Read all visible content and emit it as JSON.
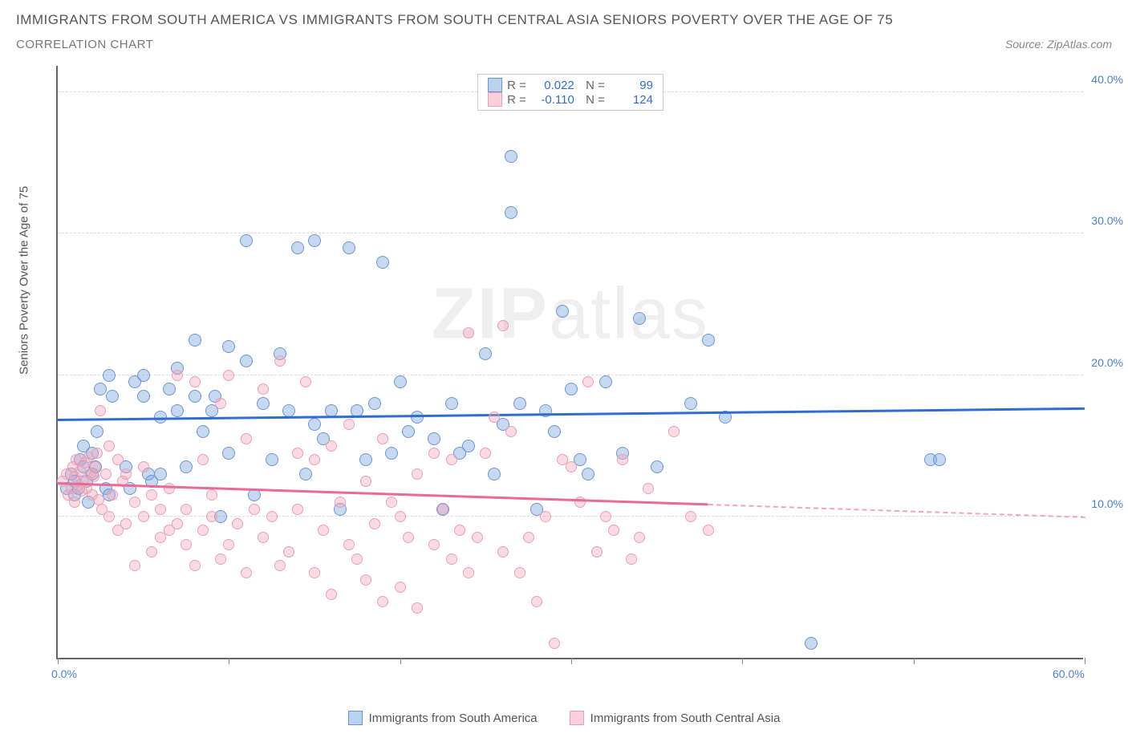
{
  "title": "IMMIGRANTS FROM SOUTH AMERICA VS IMMIGRANTS FROM SOUTH CENTRAL ASIA SENIORS POVERTY OVER THE AGE OF 75",
  "subtitle": "CORRELATION CHART",
  "source": "Source: ZipAtlas.com",
  "y_axis_label": "Seniors Poverty Over the Age of 75",
  "watermark_bold": "ZIP",
  "watermark_light": "atlas",
  "chart": {
    "type": "scatter",
    "xlim": [
      0,
      60
    ],
    "ylim": [
      0,
      42
    ],
    "x_ticks": [
      0,
      10,
      20,
      30,
      40,
      50,
      60
    ],
    "x_tick_labels": {
      "0": "0.0%",
      "60": "60.0%"
    },
    "y_ticks": [
      10,
      20,
      30,
      40
    ],
    "y_tick_labels": [
      "10.0%",
      "20.0%",
      "30.0%",
      "40.0%"
    ],
    "grid_y": [
      10,
      20,
      30,
      40
    ],
    "grid_color": "#dddddd",
    "background": "#ffffff",
    "series": [
      {
        "name": "Immigrants from South America",
        "color_fill": "rgba(130,170,225,0.45)",
        "color_stroke": "#6a95d5",
        "trend_color": "#2f6ed0",
        "R": "0.022",
        "N": "99",
        "trend": {
          "x1": 0,
          "y1": 16.8,
          "x2": 60,
          "y2": 17.6
        },
        "points": [
          [
            0.5,
            12
          ],
          [
            0.8,
            13
          ],
          [
            1,
            11.5
          ],
          [
            1,
            12.5
          ],
          [
            1.2,
            12
          ],
          [
            1.3,
            14
          ],
          [
            1.5,
            13.5
          ],
          [
            1.5,
            15
          ],
          [
            1.7,
            12.5
          ],
          [
            1.8,
            11
          ],
          [
            2,
            13
          ],
          [
            2,
            14.5
          ],
          [
            2.2,
            13.5
          ],
          [
            2.3,
            16
          ],
          [
            2.5,
            19
          ],
          [
            2.8,
            12
          ],
          [
            3,
            11.5
          ],
          [
            3,
            20
          ],
          [
            3.2,
            18.5
          ],
          [
            4,
            13.5
          ],
          [
            4.2,
            12
          ],
          [
            4.5,
            19.5
          ],
          [
            5,
            20
          ],
          [
            5,
            18.5
          ],
          [
            5.3,
            13
          ],
          [
            5.5,
            12.5
          ],
          [
            6,
            17
          ],
          [
            6,
            13
          ],
          [
            6.5,
            19
          ],
          [
            7,
            20.5
          ],
          [
            7,
            17.5
          ],
          [
            7.5,
            13.5
          ],
          [
            8,
            18.5
          ],
          [
            8,
            22.5
          ],
          [
            8.5,
            16
          ],
          [
            9,
            17.5
          ],
          [
            9.2,
            18.5
          ],
          [
            9.5,
            10
          ],
          [
            10,
            22
          ],
          [
            10,
            14.5
          ],
          [
            11,
            29.5
          ],
          [
            11,
            21
          ],
          [
            11.5,
            11.5
          ],
          [
            12,
            18
          ],
          [
            12.5,
            14
          ],
          [
            13,
            21.5
          ],
          [
            13.5,
            17.5
          ],
          [
            14,
            29
          ],
          [
            14.5,
            13
          ],
          [
            15,
            16.5
          ],
          [
            15,
            29.5
          ],
          [
            15.5,
            15.5
          ],
          [
            16,
            17.5
          ],
          [
            16.5,
            10.5
          ],
          [
            17,
            29
          ],
          [
            17.5,
            17.5
          ],
          [
            18,
            14
          ],
          [
            18.5,
            18
          ],
          [
            19,
            28
          ],
          [
            19.5,
            14.5
          ],
          [
            20,
            19.5
          ],
          [
            20.5,
            16
          ],
          [
            21,
            17
          ],
          [
            22,
            15.5
          ],
          [
            22.5,
            10.5
          ],
          [
            23,
            18
          ],
          [
            23.5,
            14.5
          ],
          [
            24,
            15
          ],
          [
            25,
            21.5
          ],
          [
            25.5,
            13
          ],
          [
            26,
            16.5
          ],
          [
            26.5,
            35.5
          ],
          [
            26.5,
            31.5
          ],
          [
            27,
            18
          ],
          [
            28,
            10.5
          ],
          [
            28.5,
            17.5
          ],
          [
            29,
            16
          ],
          [
            29.5,
            24.5
          ],
          [
            30,
            19
          ],
          [
            30.5,
            14
          ],
          [
            31,
            13
          ],
          [
            32,
            19.5
          ],
          [
            33,
            14.5
          ],
          [
            34,
            24
          ],
          [
            35,
            13.5
          ],
          [
            37,
            18
          ],
          [
            38,
            22.5
          ],
          [
            39,
            17
          ],
          [
            44,
            1
          ],
          [
            51,
            14
          ],
          [
            51.5,
            14
          ]
        ]
      },
      {
        "name": "Immigrants from South Central Asia",
        "color_fill": "rgba(245,165,185,0.4)",
        "color_stroke": "#e8a0b5",
        "trend_color": "#e86a95",
        "R": "-0.110",
        "N": "124",
        "trend": {
          "x1": 0,
          "y1": 12.3,
          "x2": 38,
          "y2": 10.8
        },
        "trend_dash": {
          "x1": 38,
          "y1": 10.8,
          "x2": 60,
          "y2": 9.9
        },
        "points": [
          [
            0.3,
            12.5
          ],
          [
            0.5,
            13
          ],
          [
            0.6,
            11.5
          ],
          [
            0.8,
            12
          ],
          [
            0.9,
            13.5
          ],
          [
            1,
            12.8
          ],
          [
            1,
            11
          ],
          [
            1.1,
            14
          ],
          [
            1.2,
            12.2
          ],
          [
            1.3,
            13.2
          ],
          [
            1.4,
            11.8
          ],
          [
            1.5,
            12.5
          ],
          [
            1.6,
            13.8
          ],
          [
            1.7,
            12
          ],
          [
            1.8,
            14.2
          ],
          [
            1.9,
            13
          ],
          [
            2,
            11.5
          ],
          [
            2.1,
            12.8
          ],
          [
            2.2,
            13.5
          ],
          [
            2.3,
            14.5
          ],
          [
            2.4,
            11.2
          ],
          [
            2.5,
            17.5
          ],
          [
            2.6,
            10.5
          ],
          [
            2.8,
            13
          ],
          [
            3,
            15
          ],
          [
            3,
            10
          ],
          [
            3.2,
            11.5
          ],
          [
            3.5,
            9
          ],
          [
            3.5,
            14
          ],
          [
            3.8,
            12.5
          ],
          [
            4,
            9.5
          ],
          [
            4,
            13
          ],
          [
            4.5,
            6.5
          ],
          [
            4.5,
            11
          ],
          [
            5,
            10
          ],
          [
            5,
            13.5
          ],
          [
            5.5,
            7.5
          ],
          [
            5.5,
            11.5
          ],
          [
            6,
            8.5
          ],
          [
            6,
            10.5
          ],
          [
            6.5,
            9
          ],
          [
            6.5,
            12
          ],
          [
            7,
            20
          ],
          [
            7,
            9.5
          ],
          [
            7.5,
            10.5
          ],
          [
            7.5,
            8
          ],
          [
            8,
            6.5
          ],
          [
            8,
            19.5
          ],
          [
            8.5,
            9
          ],
          [
            8.5,
            14
          ],
          [
            9,
            10
          ],
          [
            9,
            11.5
          ],
          [
            9.5,
            7
          ],
          [
            9.5,
            18
          ],
          [
            10,
            8
          ],
          [
            10,
            20
          ],
          [
            10.5,
            9.5
          ],
          [
            11,
            15.5
          ],
          [
            11,
            6
          ],
          [
            11.5,
            10.5
          ],
          [
            12,
            19
          ],
          [
            12,
            8.5
          ],
          [
            12.5,
            10
          ],
          [
            13,
            21
          ],
          [
            13,
            6.5
          ],
          [
            13.5,
            7.5
          ],
          [
            14,
            10.5
          ],
          [
            14,
            14.5
          ],
          [
            14.5,
            19.5
          ],
          [
            15,
            6
          ],
          [
            15,
            14
          ],
          [
            15.5,
            9
          ],
          [
            16,
            4.5
          ],
          [
            16,
            15
          ],
          [
            16.5,
            11
          ],
          [
            17,
            8
          ],
          [
            17,
            16.5
          ],
          [
            17.5,
            7
          ],
          [
            18,
            12.5
          ],
          [
            18,
            5.5
          ],
          [
            18.5,
            9.5
          ],
          [
            19,
            4
          ],
          [
            19,
            15.5
          ],
          [
            19.5,
            11
          ],
          [
            20,
            10
          ],
          [
            20,
            5
          ],
          [
            20.5,
            8.5
          ],
          [
            21,
            13
          ],
          [
            21,
            3.5
          ],
          [
            22,
            14.5
          ],
          [
            22,
            8
          ],
          [
            22.5,
            10.5
          ],
          [
            23,
            14
          ],
          [
            23,
            7
          ],
          [
            23.5,
            9
          ],
          [
            24,
            23
          ],
          [
            24,
            6
          ],
          [
            24.5,
            8.5
          ],
          [
            25,
            14.5
          ],
          [
            25.5,
            17
          ],
          [
            26,
            23.5
          ],
          [
            26,
            7.5
          ],
          [
            26.5,
            16
          ],
          [
            27,
            6
          ],
          [
            27.5,
            8.5
          ],
          [
            28,
            4
          ],
          [
            28.5,
            10
          ],
          [
            29,
            1
          ],
          [
            29.5,
            14
          ],
          [
            30,
            13.5
          ],
          [
            30.5,
            11
          ],
          [
            31,
            19.5
          ],
          [
            31.5,
            7.5
          ],
          [
            32,
            10
          ],
          [
            32.5,
            9
          ],
          [
            33,
            14
          ],
          [
            33.5,
            7
          ],
          [
            34,
            8.5
          ],
          [
            34.5,
            12
          ],
          [
            36,
            16
          ],
          [
            37,
            10
          ],
          [
            38,
            9
          ]
        ]
      }
    ],
    "legend_bottom": [
      {
        "label": "Immigrants from South America",
        "sq": "blue"
      },
      {
        "label": "Immigrants from South Central Asia",
        "sq": "pink"
      }
    ]
  }
}
